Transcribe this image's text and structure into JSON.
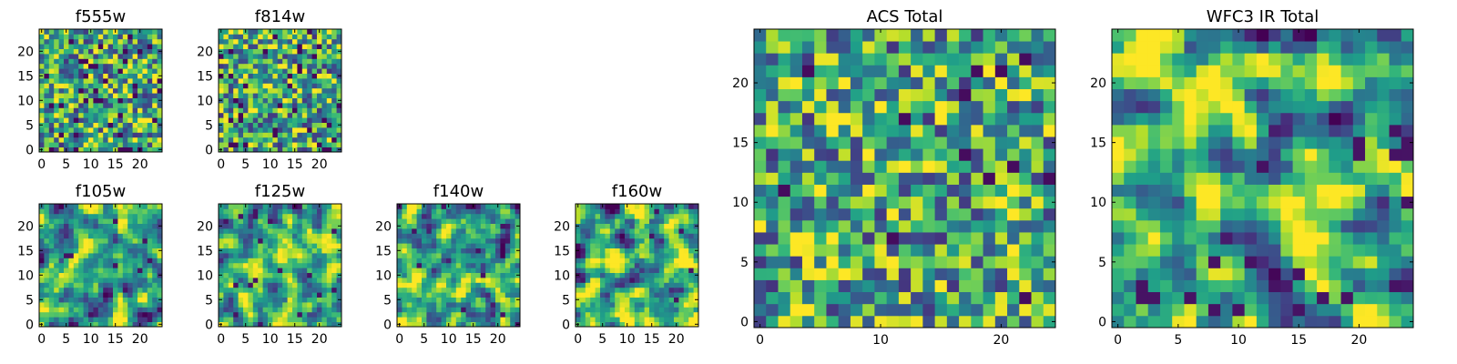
{
  "chart_data": [
    {
      "type": "heatmap",
      "title": "f555w",
      "rows": 25,
      "cols": 25,
      "colormap": "viridis",
      "xticks": [
        0,
        5,
        10,
        15,
        20
      ],
      "yticks": [
        0,
        5,
        10,
        15,
        20
      ],
      "xlim": [
        0,
        24
      ],
      "ylim": [
        0,
        24
      ],
      "texture": "speckled"
    },
    {
      "type": "heatmap",
      "title": "f814w",
      "rows": 25,
      "cols": 25,
      "colormap": "viridis",
      "xticks": [
        0,
        5,
        10,
        15,
        20
      ],
      "yticks": [
        0,
        5,
        10,
        15,
        20
      ],
      "xlim": [
        0,
        24
      ],
      "ylim": [
        0,
        24
      ],
      "texture": "speckled"
    },
    {
      "type": "heatmap",
      "title": "f105w",
      "rows": 25,
      "cols": 25,
      "colormap": "viridis",
      "xticks": [
        0,
        5,
        10,
        15,
        20
      ],
      "yticks": [
        0,
        5,
        10,
        15,
        20
      ],
      "xlim": [
        0,
        24
      ],
      "ylim": [
        0,
        24
      ],
      "texture": "smooth"
    },
    {
      "type": "heatmap",
      "title": "f125w",
      "rows": 25,
      "cols": 25,
      "colormap": "viridis",
      "xticks": [
        0,
        5,
        10,
        15,
        20
      ],
      "yticks": [
        0,
        5,
        10,
        15,
        20
      ],
      "xlim": [
        0,
        24
      ],
      "ylim": [
        0,
        24
      ],
      "texture": "smooth"
    },
    {
      "type": "heatmap",
      "title": "f140w",
      "rows": 25,
      "cols": 25,
      "colormap": "viridis",
      "xticks": [
        0,
        5,
        10,
        15,
        20
      ],
      "yticks": [
        0,
        5,
        10,
        15,
        20
      ],
      "xlim": [
        0,
        24
      ],
      "ylim": [
        0,
        24
      ],
      "texture": "smooth"
    },
    {
      "type": "heatmap",
      "title": "f160w",
      "rows": 25,
      "cols": 25,
      "colormap": "viridis",
      "xticks": [
        0,
        5,
        10,
        15,
        20
      ],
      "yticks": [
        0,
        5,
        10,
        15,
        20
      ],
      "xlim": [
        0,
        24
      ],
      "ylim": [
        0,
        24
      ],
      "texture": "smooth"
    },
    {
      "type": "heatmap",
      "title": "ACS Total",
      "rows": 25,
      "cols": 25,
      "colormap": "viridis",
      "xticks": [
        0,
        10,
        20
      ],
      "yticks": [
        0,
        5,
        10,
        15,
        20
      ],
      "xlim": [
        0,
        24
      ],
      "ylim": [
        0,
        24
      ],
      "texture": "blocky"
    },
    {
      "type": "heatmap",
      "title": "WFC3 IR Total",
      "rows": 25,
      "cols": 25,
      "colormap": "viridis",
      "xticks": [
        0,
        5,
        10,
        15,
        20
      ],
      "yticks": [
        0,
        5,
        10,
        15,
        20
      ],
      "xlim": [
        0,
        24
      ],
      "ylim": [
        0,
        24
      ],
      "texture": "smooth-dark-topright"
    }
  ]
}
